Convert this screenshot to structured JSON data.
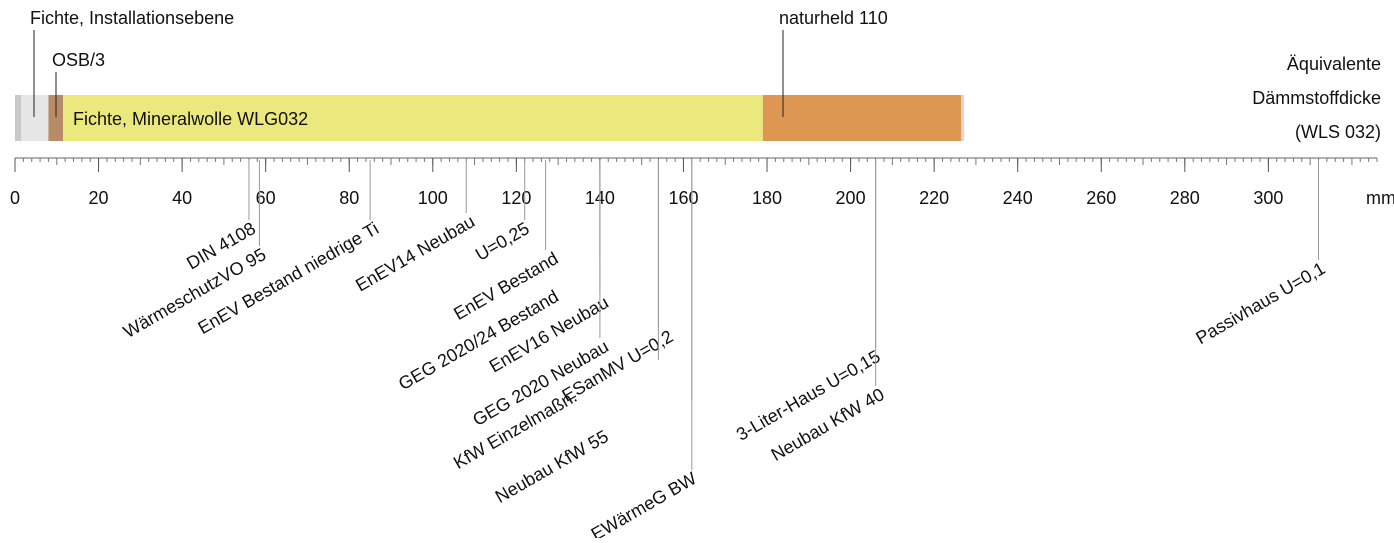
{
  "chart_data": {
    "type": "layer-scale",
    "layers": [
      {
        "name": null,
        "thickness": 1.5,
        "color": "#c9c9c9"
      },
      {
        "name": "Fichte, Installationsebene",
        "thickness": 6.5,
        "color": "#e6e6e6"
      },
      {
        "name": "OSB/3",
        "thickness": 3.5,
        "color": "#b98a68"
      },
      {
        "name": "Fichte, Mineralwolle WLG032",
        "thickness": 167.5,
        "color": "#ebe97d"
      },
      {
        "name": "naturheld 110",
        "thickness": 47.5,
        "color": "#de9752"
      },
      {
        "name": null,
        "thickness": 0.7,
        "color": "#d8d8d8"
      }
    ],
    "axis_label": [
      "Äquivalente",
      "Dämmstoffdicke",
      "(WLS 032)"
    ],
    "unit": "mm",
    "xlim": [
      0,
      326
    ],
    "xticks": [
      0,
      20,
      40,
      60,
      80,
      100,
      120,
      140,
      160,
      180,
      200,
      220,
      240,
      260,
      280,
      300
    ],
    "standards": [
      {
        "name": "DIN 4108",
        "value": 56
      },
      {
        "name": "WärmeschutzVO 95",
        "value": 58.5
      },
      {
        "name": "EnEV Bestand niedrige Ti",
        "value": 85
      },
      {
        "name": "EnEV14 Neubau",
        "value": 108
      },
      {
        "name": "U=0,25",
        "value": 122
      },
      {
        "name": "EnEV Bestand",
        "value": 127
      },
      {
        "name": "GEG 2020/24 Bestand",
        "value": 140
      },
      {
        "name": "EnEV16 Neubau",
        "value": 140
      },
      {
        "name": "GEG 2020 Neubau",
        "value": 140
      },
      {
        "name": "ESanMV U=0,2",
        "value": 154
      },
      {
        "name": "KfW Einzelmaßn.",
        "value": 154
      },
      {
        "name": "Neubau KfW 55",
        "value": 162
      },
      {
        "name": "EWärmeG BW",
        "value": 162
      },
      {
        "name": "3-Liter-Haus U=0,15",
        "value": 206
      },
      {
        "name": "Neubau KfW 40",
        "value": 206
      },
      {
        "name": "Passivhaus U=0,1",
        "value": 312
      }
    ]
  }
}
